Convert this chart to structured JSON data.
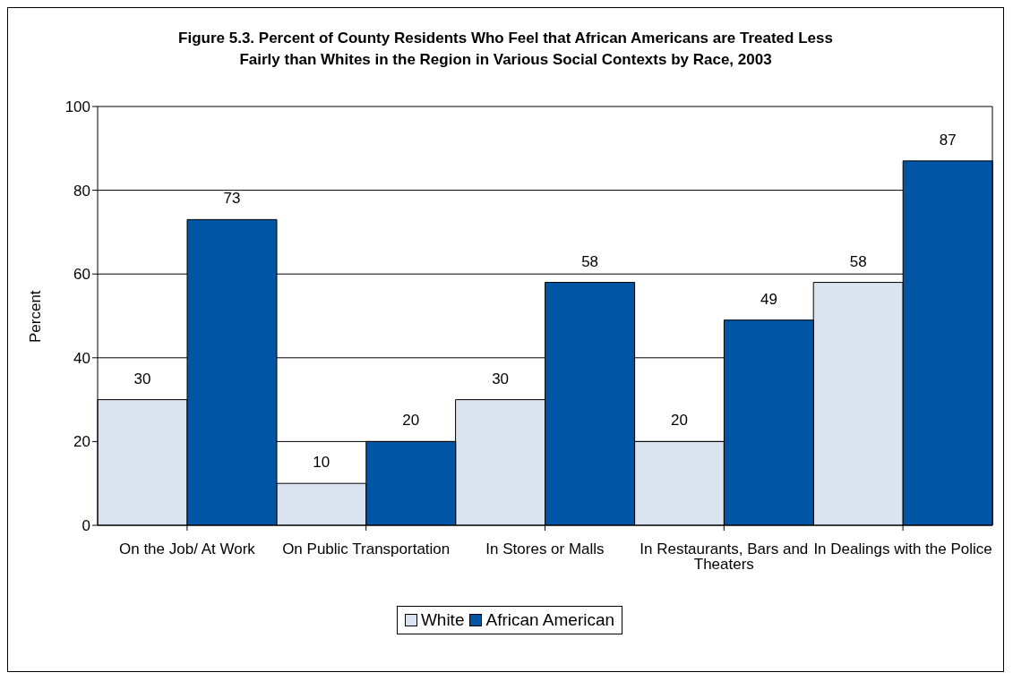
{
  "chart_data": {
    "type": "bar",
    "title": "Figure 5.3. Percent of County Residents Who Feel that African Americans are Treated Less Fairly than Whites in the Region in Various Social Contexts by Race, 2003",
    "ylabel": "Percent",
    "categories": [
      "On the Job/ At Work",
      "On Public Transportation",
      "In Stores or Malls",
      "In Restaurants, Bars and Theaters",
      "In Dealings with the Police"
    ],
    "series": [
      {
        "name": "White",
        "color": "#dae3f0",
        "values": [
          30,
          10,
          30,
          20,
          58
        ]
      },
      {
        "name": "African American",
        "color": "#0055a5",
        "values": [
          73,
          20,
          58,
          49,
          87
        ]
      }
    ],
    "ylim": [
      0,
      100
    ],
    "yticks": [
      0,
      20,
      40,
      60,
      80,
      100
    ],
    "grid": "y",
    "legend": "bottom",
    "data_labels": true
  }
}
